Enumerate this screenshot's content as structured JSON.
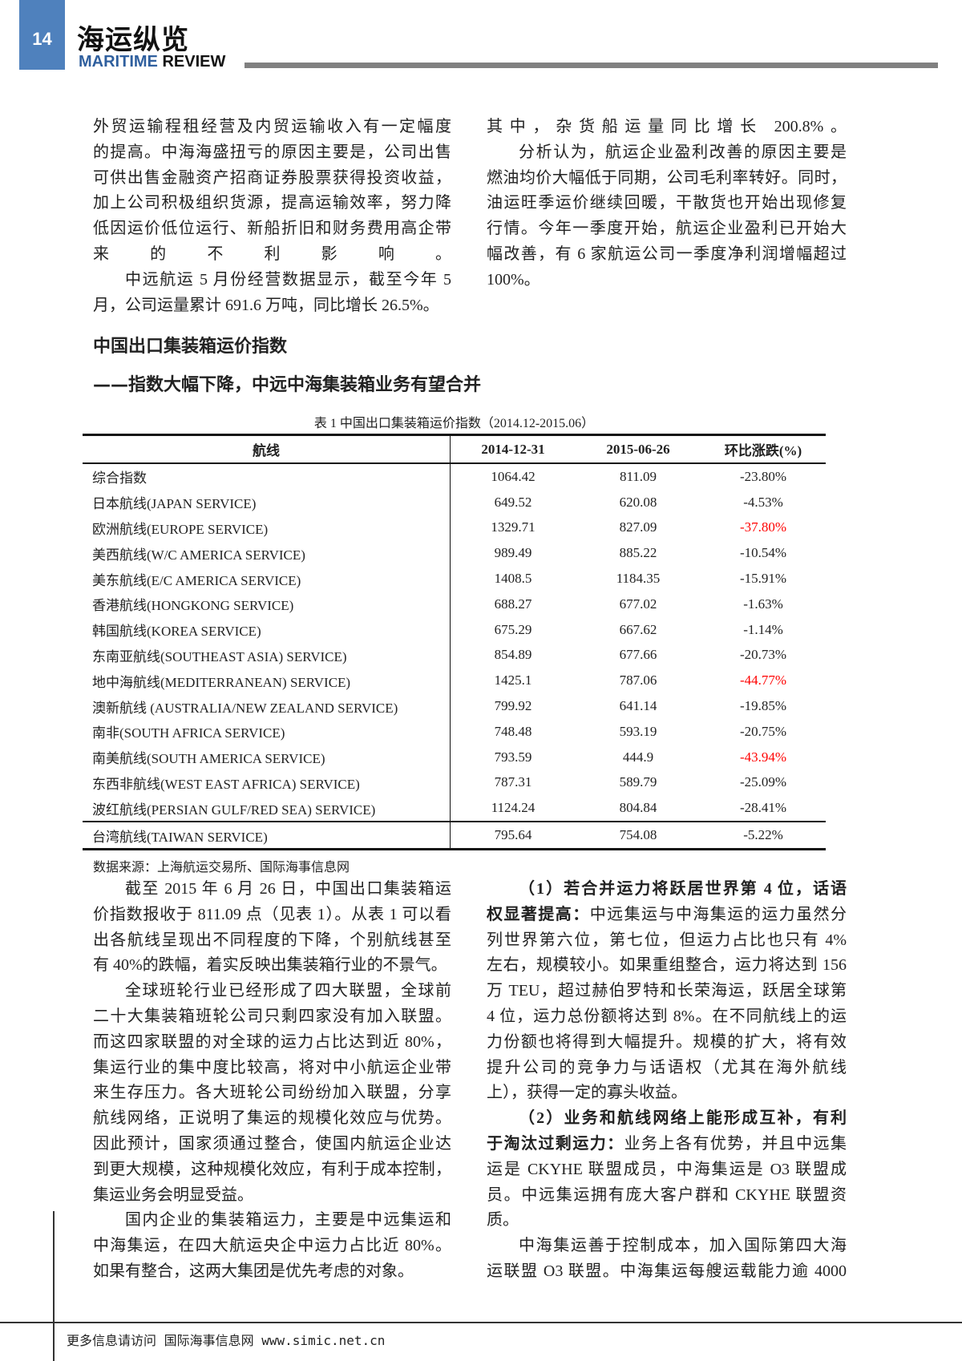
{
  "header": {
    "page_number": "14",
    "title": "海运纵览",
    "subtitle_a": "MARITIME",
    "subtitle_b": "REVIEW",
    "brand_color": "#4f81bd"
  },
  "top_left": [
    {
      "lines": [
        "外贸运输程租经营及内贸运输收入有一定幅度",
        "的提高。中海海盛扭亏的原因主要是，公司出售",
        "可供出售金融资产招商证券股票获得投资收益，",
        "加上公司积极组织货源，提高运输效率，努力降",
        "低因运价低位运行、新船折旧和财务费用高企带",
        "来的不利影响。"
      ],
      "continued": true
    },
    {
      "lines": [
        "中远航运 5 月份经营数据显示，截至今年 5",
        "月，公司运量累计 691.6 万吨，同比增长 26.5%。"
      ]
    }
  ],
  "top_right": [
    {
      "lines": [
        "其中，杂货船运量同比增长 200.8%。"
      ],
      "continued": true
    },
    {
      "lines": [
        "分析认为，航运企业盈利改善的原因主要是",
        "燃油均价大幅低于同期，公司毛利率转好。同时，",
        "油运旺季运价继续回暖，干散货也开始出现修复",
        "行情。今年一季度开始，航运企业盈利已开始大",
        "幅改善，有 6 家航运公司一季度净利润增幅超过",
        "100%。"
      ]
    }
  ],
  "section": {
    "title": "中国出口集装箱运价指数",
    "subtitle": "——指数大幅下降，中远中海集装箱业务有望合并"
  },
  "table": {
    "caption": "表 1  中国出口集装箱运价指数（2014.12-2015.06）",
    "headers": [
      "航线",
      "2014-12-31",
      "2015-06-26",
      "环比涨跌(%)"
    ],
    "highlight_color": "#ff0000",
    "rows": [
      {
        "route": "综合指数",
        "v2014": "1064.42",
        "v2015": "811.09",
        "change": "-23.80%",
        "highlight": false
      },
      {
        "route": "日本航线(JAPAN SERVICE)",
        "v2014": "649.52",
        "v2015": "620.08",
        "change": "-4.53%",
        "highlight": false
      },
      {
        "route": "欧洲航线(EUROPE SERVICE)",
        "v2014": "1329.71",
        "v2015": "827.09",
        "change": "-37.80%",
        "highlight": true
      },
      {
        "route": "美西航线(W/C AMERICA SERVICE)",
        "v2014": "989.49",
        "v2015": "885.22",
        "change": "-10.54%",
        "highlight": false
      },
      {
        "route": "美东航线(E/C AMERICA SERVICE)",
        "v2014": "1408.5",
        "v2015": "1184.35",
        "change": "-15.91%",
        "highlight": false
      },
      {
        "route": "香港航线(HONGKONG SERVICE)",
        "v2014": "688.27",
        "v2015": "677.02",
        "change": "-1.63%",
        "highlight": false
      },
      {
        "route": "韩国航线(KOREA SERVICE)",
        "v2014": "675.29",
        "v2015": "667.62",
        "change": "-1.14%",
        "highlight": false
      },
      {
        "route": "东南亚航线(SOUTHEAST ASIA) SERVICE)",
        "v2014": "854.89",
        "v2015": "677.66",
        "change": "-20.73%",
        "highlight": false
      },
      {
        "route": "地中海航线(MEDITERRANEAN) SERVICE)",
        "v2014": "1425.1",
        "v2015": "787.06",
        "change": "-44.77%",
        "highlight": true
      },
      {
        "route": "澳新航线  (AUSTRALIA/NEW ZEALAND SERVICE)",
        "v2014": "799.92",
        "v2015": "641.14",
        "change": "-19.85%",
        "highlight": false
      },
      {
        "route": "南非(SOUTH AFRICA SERVICE)",
        "v2014": "748.48",
        "v2015": "593.19",
        "change": "-20.75%",
        "highlight": false
      },
      {
        "route": "南美航线(SOUTH AMERICA SERVICE)",
        "v2014": "793.59",
        "v2015": "444.9",
        "change": "-43.94%",
        "highlight": true
      },
      {
        "route": "东西非航线(WEST EAST AFRICA) SERVICE)",
        "v2014": "787.31",
        "v2015": "589.79",
        "change": "-25.09%",
        "highlight": false
      },
      {
        "route": "波红航线(PERSIAN GULF/RED SEA) SERVICE)",
        "v2014": "1124.24",
        "v2015": "804.84",
        "change": "-28.41%",
        "highlight": false
      },
      {
        "route": "台湾航线(TAIWAN SERVICE)",
        "v2014": "795.64",
        "v2015": "754.08",
        "change": "-5.22%",
        "highlight": false
      }
    ],
    "source": "数据来源：上海航运交易所、国际海事信息网"
  },
  "bottom_left": [
    {
      "lines": [
        "截至 2015 年 6 月 26 日，中国出口集装箱运",
        "价指数报收于 811.09 点（见表 1）。从表 1 可以看",
        "出各航线呈现出不同程度的下降，个别航线甚至",
        "有 40%的跌幅，着实反映出集装箱行业的不景气。"
      ]
    },
    {
      "lines": [
        "全球班轮行业已经形成了四大联盟，全球前",
        "二十大集装箱班轮公司只剩四家没有加入联盟。",
        "而这四家联盟的对全球的运力占比达到近  80%，",
        "集运行业的集中度比较高，将对中小航运企业带",
        "来生存压力。各大班轮公司纷纷加入联盟，分享",
        "航线网络，正说明了集运的规模化效应与优势。",
        "因此预计，国家须通过整合，使国内航运企业达",
        "到更大规模，这种规模化效应，有利于成本控制，",
        "集运业务会明显受益。"
      ]
    },
    {
      "lines": [
        "国内企业的集装箱运力，主要是中远集运和",
        "中海集运，在四大航运央企中运力占比近  80%。",
        "如果有整合，这两大集团是优先考虑的对象。"
      ]
    }
  ],
  "bottom_right": [
    {
      "lines": [
        {
          "bold": "（1）若合并运力将跃居世界第  4  位，话语",
          "text": ""
        },
        {
          "bold": "权显著提高：",
          "text": "中远集运与中海集运的运力虽然分"
        },
        "列世界第六位，第七位，但运力占比也只有  4%",
        "左右，规模较小。如果重组整合，运力将达到 156",
        "万 TEU，超过赫伯罗特和长荣海运，跃居全球第",
        "4 位，运力总份额将达到 8%。在不同航线上的运",
        "力份额也将得到大幅提升。规模的扩大，将有效",
        "提升公司的竞争力与话语权（尤其在海外航线",
        "上），获得一定的寡头收益。"
      ]
    },
    {
      "lines": [
        {
          "bold": "（2）业务和航线网络上能形成互补，有利",
          "text": ""
        },
        {
          "bold": "于淘汰过剩运力：",
          "text": "业务上各有优势，并且中远集"
        },
        "运是 CKYHE  联盟成员，中海集运是 O3 联盟成",
        "员。中远集运拥有庞大客户群和 CKYHE 联盟资",
        "质。"
      ]
    },
    {
      "lines": [
        "中海集运善于控制成本，加入国际第四大海",
        "运联盟 O3 联盟。中海集运每艘运载能力逾 4000"
      ],
      "continued": true
    }
  ],
  "footer": {
    "text": "更多信息请访问 国际海事信息网 www.simic.net.cn"
  }
}
